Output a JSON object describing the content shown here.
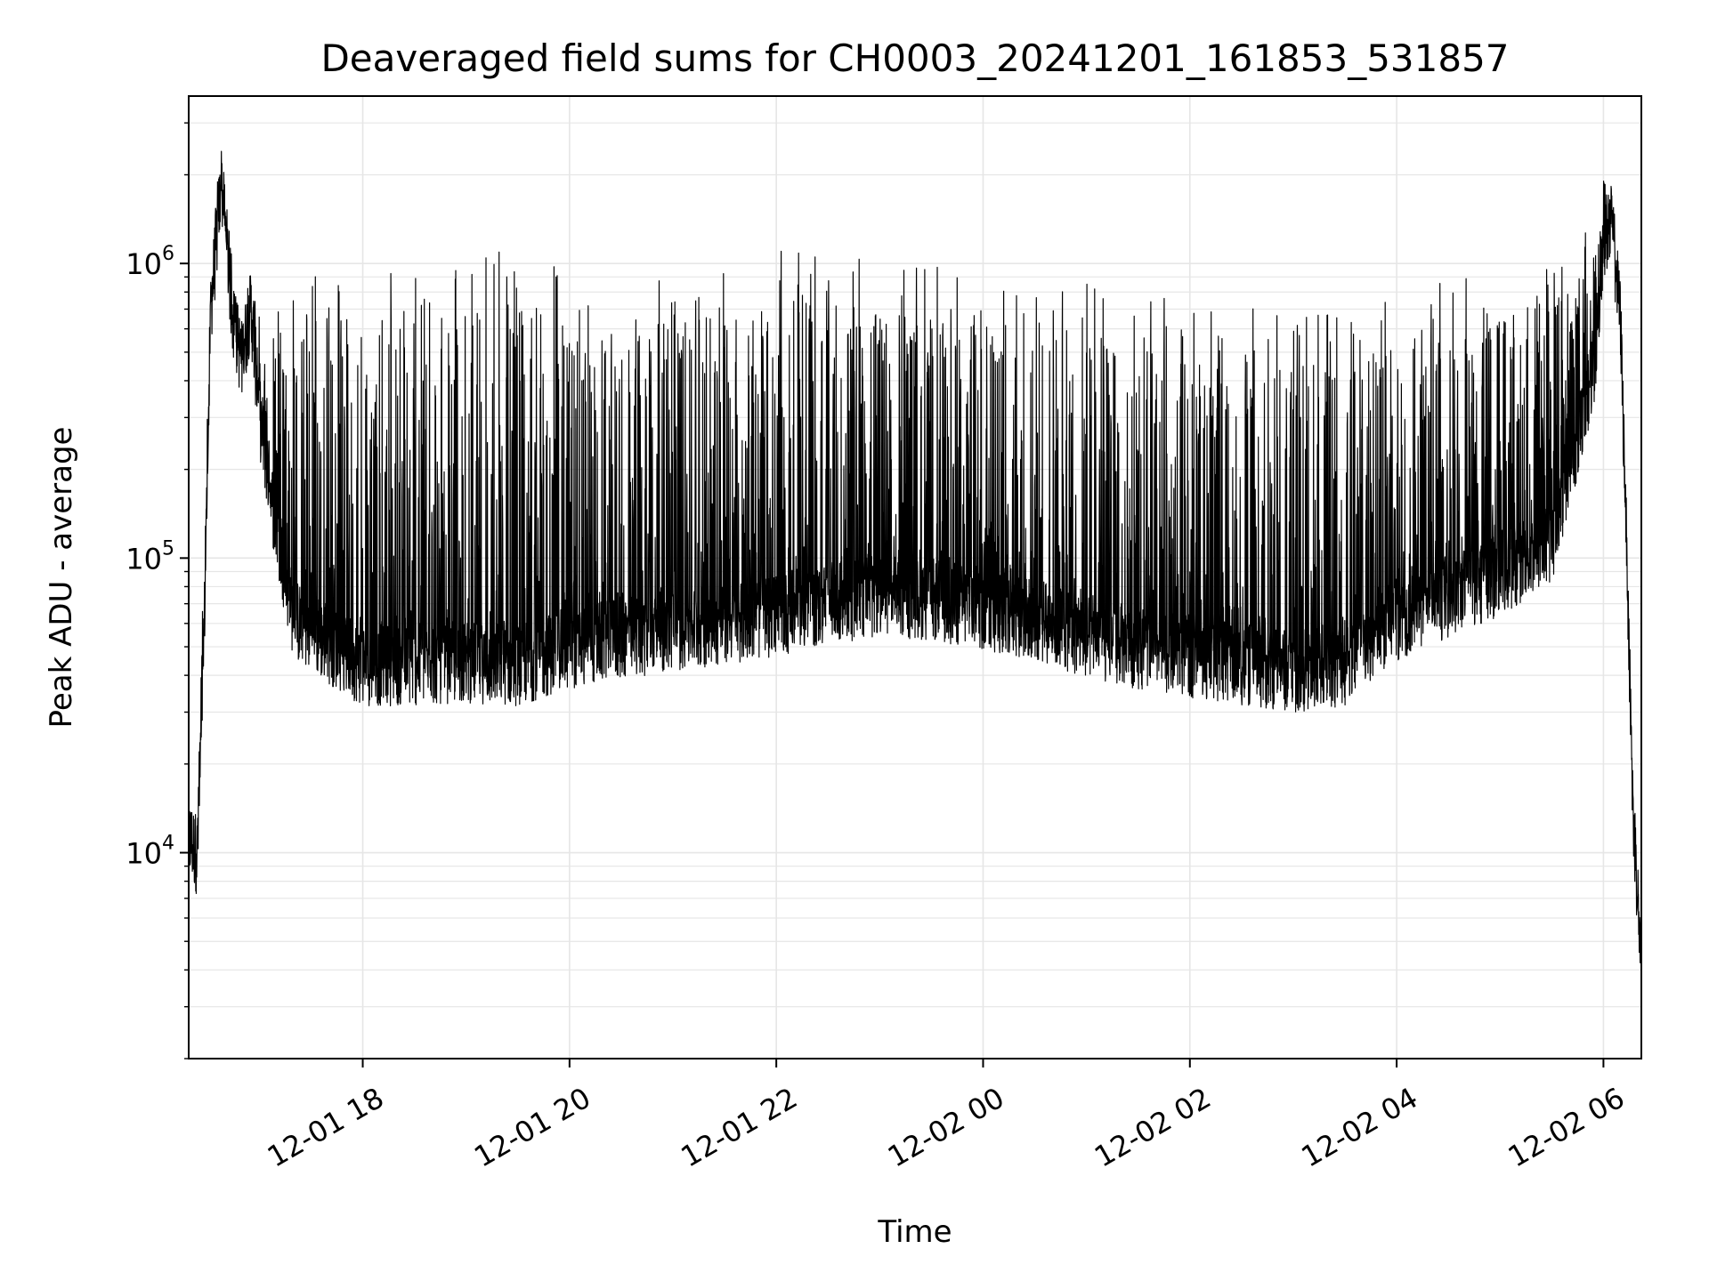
{
  "chart_data": {
    "type": "line",
    "title": "Deaveraged field sums for CH0003_20241201_161853_531857",
    "xlabel": "Time",
    "ylabel": "Peak ADU - average",
    "yscale": "log",
    "grid": true,
    "legend": "none",
    "line_color": "#000000",
    "grid_color": "#e6e6e6",
    "xlim": [
      "2024-12-01 16:19",
      "2024-12-02 06:22"
    ],
    "ylim": [
      2000,
      3700000
    ],
    "x_ticks": [
      {
        "value": "2024-12-01 18:00",
        "label": "12-01 18"
      },
      {
        "value": "2024-12-01 20:00",
        "label": "12-01 20"
      },
      {
        "value": "2024-12-01 22:00",
        "label": "12-01 22"
      },
      {
        "value": "2024-12-02 00:00",
        "label": "12-02 00"
      },
      {
        "value": "2024-12-02 02:00",
        "label": "12-02 02"
      },
      {
        "value": "2024-12-02 04:00",
        "label": "12-02 04"
      },
      {
        "value": "2024-12-02 06:00",
        "label": "12-02 06"
      }
    ],
    "y_ticks": [
      {
        "value": 10000,
        "base": "10",
        "exp": "4"
      },
      {
        "value": 100000,
        "base": "10",
        "exp": "5"
      },
      {
        "value": 1000000,
        "base": "10",
        "exp": "6"
      }
    ],
    "envelope": {
      "note_x": "times",
      "time": [
        "2024-12-01 16:19",
        "2024-12-01 16:24",
        "2024-12-01 16:27",
        "2024-12-01 16:32",
        "2024-12-01 16:38",
        "2024-12-01 16:45",
        "2024-12-01 16:50",
        "2024-12-01 16:55",
        "2024-12-01 17:00",
        "2024-12-01 17:10",
        "2024-12-01 17:20",
        "2024-12-01 17:40",
        "2024-12-01 18:00",
        "2024-12-01 18:30",
        "2024-12-01 19:00",
        "2024-12-01 19:30",
        "2024-12-01 20:00",
        "2024-12-01 20:30",
        "2024-12-01 21:00",
        "2024-12-01 21:30",
        "2024-12-01 22:00",
        "2024-12-01 22:30",
        "2024-12-01 23:00",
        "2024-12-01 23:30",
        "2024-12-02 00:00",
        "2024-12-02 00:30",
        "2024-12-02 01:00",
        "2024-12-02 01:30",
        "2024-12-02 02:00",
        "2024-12-02 02:30",
        "2024-12-02 03:00",
        "2024-12-02 03:30",
        "2024-12-02 04:00",
        "2024-12-02 04:30",
        "2024-12-02 05:00",
        "2024-12-02 05:30",
        "2024-12-02 05:45",
        "2024-12-02 05:55",
        "2024-12-02 06:00",
        "2024-12-02 06:05",
        "2024-12-02 06:10",
        "2024-12-02 06:14",
        "2024-12-02 06:17",
        "2024-12-02 06:22"
      ],
      "base": [
        11000,
        9500,
        30000,
        700000,
        1800000,
        600000,
        450000,
        700000,
        300000,
        120000,
        60000,
        50000,
        42000,
        42000,
        43000,
        42000,
        48000,
        52000,
        55000,
        58000,
        62000,
        68000,
        72000,
        70000,
        65000,
        60000,
        52000,
        48000,
        45000,
        42000,
        40000,
        42000,
        60000,
        72000,
        85000,
        110000,
        250000,
        450000,
        1200000,
        1300000,
        600000,
        80000,
        14000,
        4000
      ],
      "spike": [
        14000,
        12000,
        80000,
        1200000,
        2700000,
        900000,
        700000,
        1000000,
        800000,
        700000,
        900000,
        1000000,
        1100000,
        1000000,
        1200000,
        1200000,
        1000000,
        900000,
        1000000,
        1000000,
        1100000,
        1100000,
        1050000,
        1000000,
        950000,
        900000,
        900000,
        850000,
        700000,
        700000,
        750000,
        700000,
        800000,
        900000,
        1000000,
        1100000,
        1200000,
        1400000,
        2200000,
        1700000,
        900000,
        100000,
        20000,
        5000
      ]
    }
  }
}
